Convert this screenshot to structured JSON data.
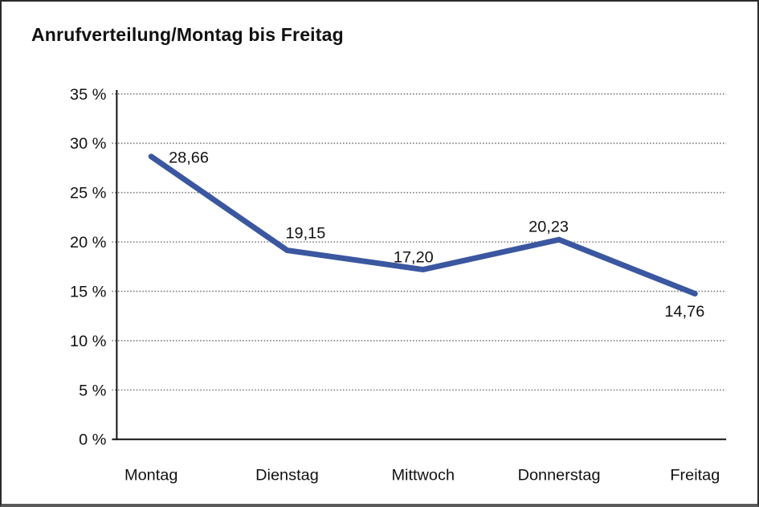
{
  "window": {
    "background_color": "#ffffff",
    "frame_border_color": "#2b2b2b"
  },
  "chart_data": {
    "type": "line",
    "title": "Anrufverteilung/Montag bis Freitag",
    "categories": [
      "Montag",
      "Dienstag",
      "Mittwoch",
      "Donnerstag",
      "Freitag"
    ],
    "values": [
      28.66,
      19.15,
      17.2,
      20.23,
      14.76
    ],
    "point_labels": [
      "28,66",
      "19,15",
      "17,20",
      "20,23",
      "14,76"
    ],
    "xlabel": "",
    "ylabel": "",
    "ylim": [
      0,
      35
    ],
    "ytick_step": 5,
    "ytick_labels": [
      "0 %",
      "5 %",
      "10 %",
      "15 %",
      "20 %",
      "25 %",
      "30 %",
      "35 %"
    ],
    "grid": "horizontal-dotted",
    "legend": "none",
    "series_name": "Anrufverteilung",
    "line_color": "#3A57A0",
    "grid_color": "#7d7d7d",
    "axis_color": "#111111",
    "text_color": "#111111"
  }
}
